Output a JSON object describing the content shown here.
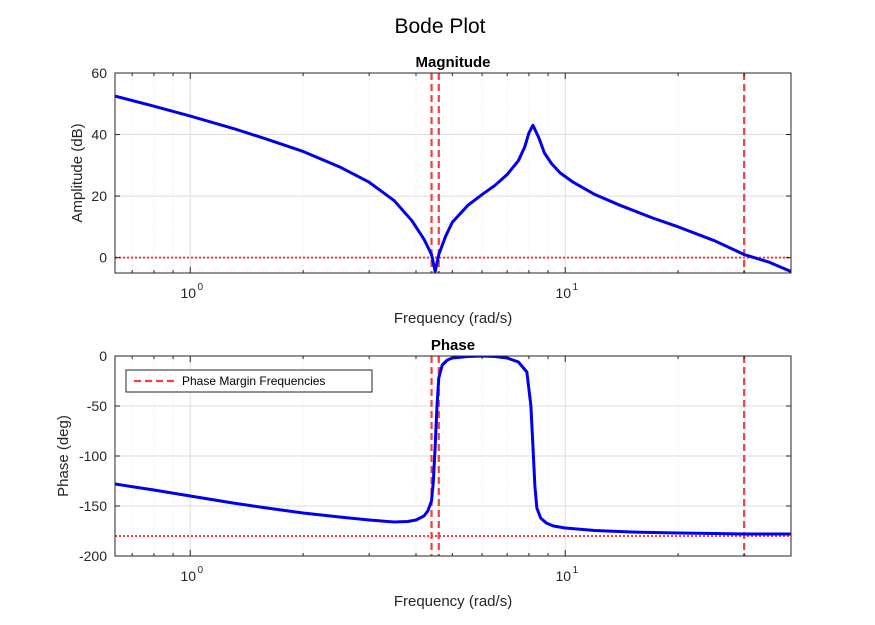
{
  "chart_data": {
    "type": "line",
    "title": "Bode Plot",
    "colors": {
      "response": "#0000ee",
      "margin_lines": "#f04040",
      "grid": "#dcdcdc"
    },
    "panels": [
      {
        "subtitle": "Magnitude",
        "xlabel": "Frequency (rad/s)",
        "ylabel": "Amplitude (dB)",
        "xscale": "log",
        "xlim": [
          0.63,
          40
        ],
        "ylim": [
          -5,
          60
        ],
        "yticks": [
          0,
          20,
          40,
          60
        ],
        "xticks": [
          {
            "value": 1,
            "base": "10",
            "exp": "0"
          },
          {
            "value": 10,
            "base": "10",
            "exp": "1"
          }
        ],
        "grid": true,
        "series": [
          {
            "x": [
              0.63,
              0.8,
              1.0,
              1.3,
              1.6,
              2.0,
              2.5,
              3.0,
              3.5,
              3.9,
              4.2,
              4.4,
              4.5,
              4.6,
              4.8,
              5.0,
              5.5,
              6.0,
              6.5,
              7.0,
              7.5,
              7.8,
              8.0,
              8.2,
              8.5,
              8.8,
              9.2,
              9.7,
              10.5,
              12,
              14,
              17,
              20,
              25,
              30,
              35,
              40
            ],
            "values": [
              52.5,
              49.2,
              46.0,
              42.0,
              38.5,
              34.5,
              29.5,
              24.5,
              18.5,
              12.0,
              6.0,
              1.0,
              -4.5,
              1.0,
              7.0,
              11.5,
              17.0,
              20.5,
              23.5,
              27.0,
              31.5,
              36.0,
              40.5,
              43.0,
              39.0,
              34.0,
              30.5,
              27.5,
              24.5,
              20.5,
              17.0,
              13.0,
              10.0,
              5.5,
              1.0,
              -1.5,
              -4.5
            ]
          }
        ],
        "reference_lines": {
          "horizontal": [
            0
          ],
          "vertical": [
            4.4,
            4.6,
            30
          ]
        }
      },
      {
        "subtitle": "Phase",
        "xlabel": "Frequency (rad/s)",
        "ylabel": "Phase (deg)",
        "xscale": "log",
        "xlim": [
          0.63,
          40
        ],
        "ylim": [
          -200,
          0
        ],
        "yticks": [
          -200,
          -150,
          -100,
          -50,
          0
        ],
        "xticks": [
          {
            "value": 1,
            "base": "10",
            "exp": "0"
          },
          {
            "value": 10,
            "base": "10",
            "exp": "1"
          }
        ],
        "grid": true,
        "legend": {
          "label": "Phase Margin Frequencies",
          "placement": "top-left"
        },
        "series": [
          {
            "x": [
              0.63,
              0.8,
              1.0,
              1.3,
              1.6,
              2.0,
              2.5,
              3.0,
              3.5,
              3.8,
              4.0,
              4.2,
              4.3,
              4.4,
              4.45,
              4.5,
              4.55,
              4.6,
              4.7,
              4.85,
              5.0,
              5.5,
              6.0,
              6.5,
              7.0,
              7.5,
              7.9,
              8.1,
              8.2,
              8.3,
              8.4,
              8.6,
              8.9,
              9.3,
              10,
              12,
              15,
              20,
              25,
              30,
              40
            ],
            "values": [
              -128,
              -134,
              -140,
              -147,
              -152,
              -157,
              -161,
              -164,
              -166,
              -165.5,
              -164,
              -160,
              -155,
              -145,
              -125,
              -90,
              -50,
              -22,
              -9,
              -4,
              -2,
              -0.5,
              0,
              -0.5,
              -2,
              -6,
              -16,
              -50,
              -90,
              -130,
              -152,
              -162,
              -167,
              -170,
              -172,
              -174.5,
              -176,
              -177,
              -177.5,
              -178,
              -178
            ]
          }
        ],
        "reference_lines": {
          "horizontal": [
            -180
          ],
          "vertical": [
            4.4,
            4.6,
            30
          ]
        }
      }
    ]
  }
}
